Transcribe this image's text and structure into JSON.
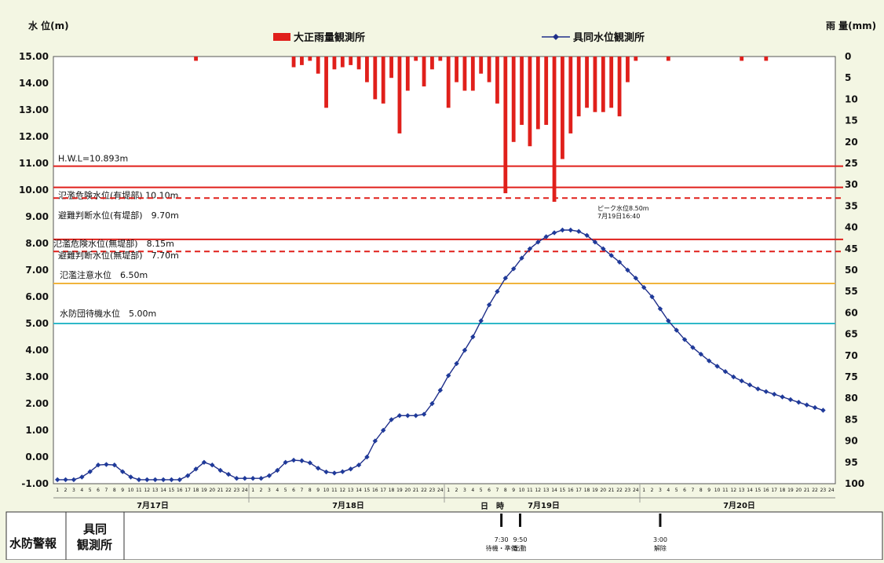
{
  "chart_data": {
    "type": "line",
    "title": "",
    "ylabel_left": "水 位(m)",
    "ylabel_right": "雨 量(mm)",
    "legend": [
      {
        "name": "大正雨量観測所",
        "kind": "bar",
        "color": "#e0201b"
      },
      {
        "name": "具同水位観測所",
        "kind": "line-marker",
        "color": "#1f2f8a"
      }
    ],
    "y_left": {
      "min": -1,
      "max": 15,
      "ticks": [
        "-1.00",
        "0.00",
        "1.00",
        "2.00",
        "3.00",
        "4.00",
        "5.00",
        "6.00",
        "7.00",
        "8.00",
        "9.00",
        "10.00",
        "11.00",
        "12.00",
        "13.00",
        "14.00",
        "15.00"
      ]
    },
    "y_right": {
      "min": 0,
      "max": 100,
      "inverted": true,
      "ticks": [
        "0",
        "5",
        "10",
        "15",
        "20",
        "25",
        "30",
        "35",
        "40",
        "45",
        "50",
        "55",
        "60",
        "65",
        "70",
        "75",
        "80",
        "85",
        "90",
        "95",
        "100"
      ]
    },
    "x": {
      "hours_per_day": [
        "1",
        "2",
        "3",
        "4",
        "5",
        "6",
        "7",
        "8",
        "9",
        "10",
        "11",
        "12",
        "13",
        "14",
        "15",
        "16",
        "17",
        "18",
        "19",
        "20",
        "21",
        "22",
        "23",
        "24"
      ],
      "days": [
        "7月17日",
        "7月18日",
        "7月19日",
        "7月20日"
      ],
      "axis_caption": "日　時"
    },
    "levels": [
      {
        "label": "H.W.L=10.893m",
        "value": 10.893,
        "color": "#e0201b",
        "style": "solid"
      },
      {
        "label": "氾濫危険水位(有堤部) 10.10m",
        "value": 10.1,
        "color": "#e0201b",
        "style": "solid"
      },
      {
        "label": "避難判断水位(有堤部)　9.70m",
        "value": 9.7,
        "color": "#e0201b",
        "style": "dashed"
      },
      {
        "label": "氾濫危険水位(無堤部)　8.15m",
        "value": 8.15,
        "color": "#e0201b",
        "style": "solid"
      },
      {
        "label": "避難判断水位(無堤部)　7.70m",
        "value": 7.7,
        "color": "#e0201b",
        "style": "dashed"
      },
      {
        "label": "氾濫注意水位　6.50m",
        "value": 6.5,
        "color": "#f0b43c",
        "style": "solid"
      },
      {
        "label": "水防団待機水位　5.00m",
        "value": 5.0,
        "color": "#2fb9c8",
        "style": "solid"
      }
    ],
    "rain_bars": [
      [
        18,
        1
      ],
      [
        30,
        2.5
      ],
      [
        31,
        2
      ],
      [
        32,
        1
      ],
      [
        33,
        4
      ],
      [
        34,
        12
      ],
      [
        35,
        3
      ],
      [
        36,
        2.5
      ],
      [
        37,
        2
      ],
      [
        38,
        3
      ],
      [
        39,
        6
      ],
      [
        40,
        10
      ],
      [
        41,
        11
      ],
      [
        42,
        5
      ],
      [
        43,
        18
      ],
      [
        44,
        8
      ],
      [
        45,
        1
      ],
      [
        46,
        7
      ],
      [
        47,
        3
      ],
      [
        48,
        1
      ],
      [
        49,
        12
      ],
      [
        50,
        6
      ],
      [
        51,
        8
      ],
      [
        52,
        8
      ],
      [
        53,
        4
      ],
      [
        54,
        6
      ],
      [
        55,
        11
      ],
      [
        56,
        32
      ],
      [
        57,
        20
      ],
      [
        58,
        16
      ],
      [
        59,
        21
      ],
      [
        60,
        17
      ],
      [
        61,
        16
      ],
      [
        62,
        34
      ],
      [
        63,
        24
      ],
      [
        64,
        18
      ],
      [
        65,
        14
      ],
      [
        66,
        12
      ],
      [
        67,
        13
      ],
      [
        68,
        13
      ],
      [
        69,
        12
      ],
      [
        70,
        14
      ],
      [
        71,
        6
      ],
      [
        72,
        1
      ],
      [
        76,
        1
      ],
      [
        85,
        1
      ],
      [
        88,
        1
      ]
    ],
    "series": [
      {
        "name": "具同水位観測所",
        "values": [
          -0.85,
          -0.85,
          -0.85,
          -0.75,
          -0.55,
          -0.3,
          -0.28,
          -0.3,
          -0.55,
          -0.75,
          -0.85,
          -0.85,
          -0.85,
          -0.85,
          -0.85,
          -0.85,
          -0.7,
          -0.45,
          -0.2,
          -0.3,
          -0.5,
          -0.65,
          -0.8,
          -0.8,
          -0.8,
          -0.8,
          -0.7,
          -0.5,
          -0.2,
          -0.12,
          -0.14,
          -0.22,
          -0.42,
          -0.56,
          -0.6,
          -0.55,
          -0.45,
          -0.3,
          0.0,
          0.6,
          1.0,
          1.4,
          1.55,
          1.55,
          1.55,
          1.6,
          2.0,
          2.5,
          3.05,
          3.5,
          4.0,
          4.5,
          5.1,
          5.7,
          6.2,
          6.7,
          7.05,
          7.45,
          7.8,
          8.05,
          8.25,
          8.4,
          8.5,
          8.5,
          8.45,
          8.3,
          8.05,
          7.8,
          7.55,
          7.3,
          7.0,
          6.7,
          6.35,
          6.0,
          5.55,
          5.1,
          4.75,
          4.4,
          4.1,
          3.85,
          3.6,
          3.4,
          3.2,
          3.0,
          2.85,
          2.7,
          2.55,
          2.45,
          2.35,
          2.25,
          2.15,
          2.05,
          1.95,
          1.85,
          1.75
        ]
      }
    ],
    "peak_annotation": [
      "ピーク水位8.50m",
      "7月19日16:40"
    ]
  },
  "table": {
    "row_label": "水防警報",
    "station": [
      "具同",
      "観測所"
    ],
    "events": [
      {
        "hour": 55.5,
        "time": "7:30",
        "label": "待機・準備"
      },
      {
        "hour": 57.8,
        "time": "9:50",
        "label": "出動"
      },
      {
        "hour": 75,
        "time": "3:00",
        "label": "解除"
      }
    ]
  }
}
